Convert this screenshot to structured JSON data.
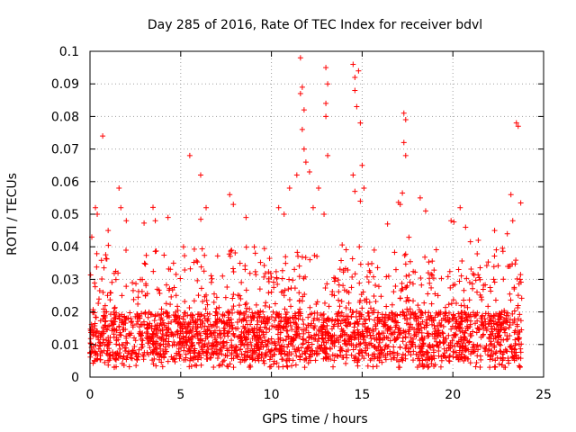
{
  "chart_data": {
    "type": "scatter",
    "title": "Day 285 of 2016, Rate Of TEC Index for receiver bdvl",
    "xlabel": "GPS time / hours",
    "ylabel": "ROTI / TECUs",
    "xlim": [
      0,
      25
    ],
    "ylim": [
      0,
      0.1
    ],
    "xticks": [
      "0",
      "5",
      "10",
      "15",
      "20",
      "25"
    ],
    "yticks": [
      "0",
      "0.01",
      "0.02",
      "0.03",
      "0.04",
      "0.05",
      "0.06",
      "0.07",
      "0.08",
      "0.09",
      "0.1"
    ],
    "grid": true,
    "marker": "+",
    "series_color": "#ff0000",
    "series": [
      {
        "name": "ROTI",
        "points": [
          [
            0.1,
            0.043
          ],
          [
            0.3,
            0.052
          ],
          [
            0.4,
            0.05
          ],
          [
            0.7,
            0.074
          ],
          [
            1.0,
            0.045
          ],
          [
            1.6,
            0.058
          ],
          [
            1.7,
            0.052
          ],
          [
            2.0,
            0.048
          ],
          [
            3.6,
            0.048
          ],
          [
            4.3,
            0.049
          ],
          [
            5.5,
            0.068
          ],
          [
            6.1,
            0.062
          ],
          [
            6.4,
            0.052
          ],
          [
            7.7,
            0.056
          ],
          [
            7.9,
            0.053
          ],
          [
            8.6,
            0.049
          ],
          [
            10.4,
            0.052
          ],
          [
            10.7,
            0.05
          ],
          [
            11.0,
            0.058
          ],
          [
            11.4,
            0.062
          ],
          [
            11.6,
            0.098
          ],
          [
            11.7,
            0.089
          ],
          [
            11.6,
            0.087
          ],
          [
            11.8,
            0.082
          ],
          [
            11.7,
            0.076
          ],
          [
            11.8,
            0.07
          ],
          [
            11.9,
            0.066
          ],
          [
            12.1,
            0.063
          ],
          [
            12.3,
            0.052
          ],
          [
            12.6,
            0.058
          ],
          [
            12.9,
            0.05
          ],
          [
            13.0,
            0.095
          ],
          [
            13.1,
            0.09
          ],
          [
            13.0,
            0.084
          ],
          [
            13.0,
            0.08
          ],
          [
            13.1,
            0.068
          ],
          [
            14.5,
            0.096
          ],
          [
            14.6,
            0.092
          ],
          [
            14.6,
            0.088
          ],
          [
            14.8,
            0.094
          ],
          [
            14.7,
            0.083
          ],
          [
            14.9,
            0.078
          ],
          [
            14.5,
            0.062
          ],
          [
            14.6,
            0.057
          ],
          [
            14.9,
            0.054
          ],
          [
            15.0,
            0.065
          ],
          [
            15.1,
            0.058
          ],
          [
            16.4,
            0.047
          ],
          [
            17.1,
            0.053
          ],
          [
            17.3,
            0.081
          ],
          [
            17.4,
            0.079
          ],
          [
            17.3,
            0.072
          ],
          [
            17.4,
            0.068
          ],
          [
            18.2,
            0.055
          ],
          [
            18.5,
            0.051
          ],
          [
            19.9,
            0.048
          ],
          [
            20.4,
            0.052
          ],
          [
            20.7,
            0.046
          ],
          [
            21.4,
            0.042
          ],
          [
            22.3,
            0.045
          ],
          [
            23.0,
            0.044
          ],
          [
            23.2,
            0.056
          ],
          [
            23.3,
            0.048
          ],
          [
            23.5,
            0.078
          ],
          [
            23.6,
            0.077
          ],
          [
            23.7,
            0.03
          ]
        ],
        "baseline": {
          "min": 0.003,
          "max": 0.03,
          "typical_max": 0.025,
          "dense_band": [
            0.005,
            0.02
          ],
          "x_range": [
            0,
            23.8
          ]
        }
      }
    ]
  }
}
